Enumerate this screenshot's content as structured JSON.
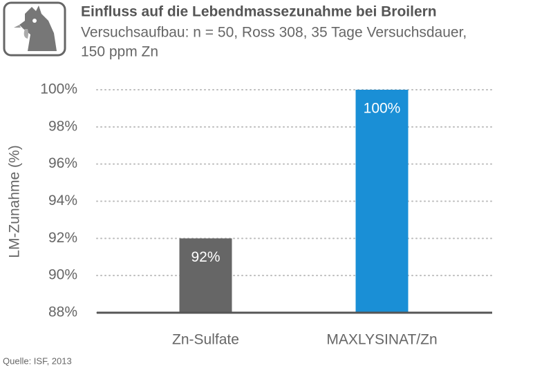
{
  "chart_data": {
    "type": "bar",
    "title": "Einfluss auf die Lebendmassezunahme bei Broilern",
    "subtitle": [
      "Versuchsaufbau: n = 50, Ross 308, 35 Tage Versuchsdauer,",
      "150 ppm Zn"
    ],
    "y_label": "LM-Zunahme (%)",
    "categories": [
      "Zn-Sulfate",
      "MAXLYSINAT/Zn"
    ],
    "values": [
      92,
      100
    ],
    "value_labels": [
      "92%",
      "100%"
    ],
    "colors": [
      "#666666",
      "#1a8fd6"
    ],
    "ylim": [
      88,
      100
    ],
    "yticks": [
      {
        "value": 88,
        "label": "88%"
      },
      {
        "value": 90,
        "label": "90%"
      },
      {
        "value": 92,
        "label": "92%"
      },
      {
        "value": 94,
        "label": "94%"
      },
      {
        "value": 96,
        "label": "96%"
      },
      {
        "value": 98,
        "label": "98%"
      },
      {
        "value": 100,
        "label": "100%"
      }
    ],
    "grid": true,
    "source": "Quelle: ISF, 2013"
  }
}
